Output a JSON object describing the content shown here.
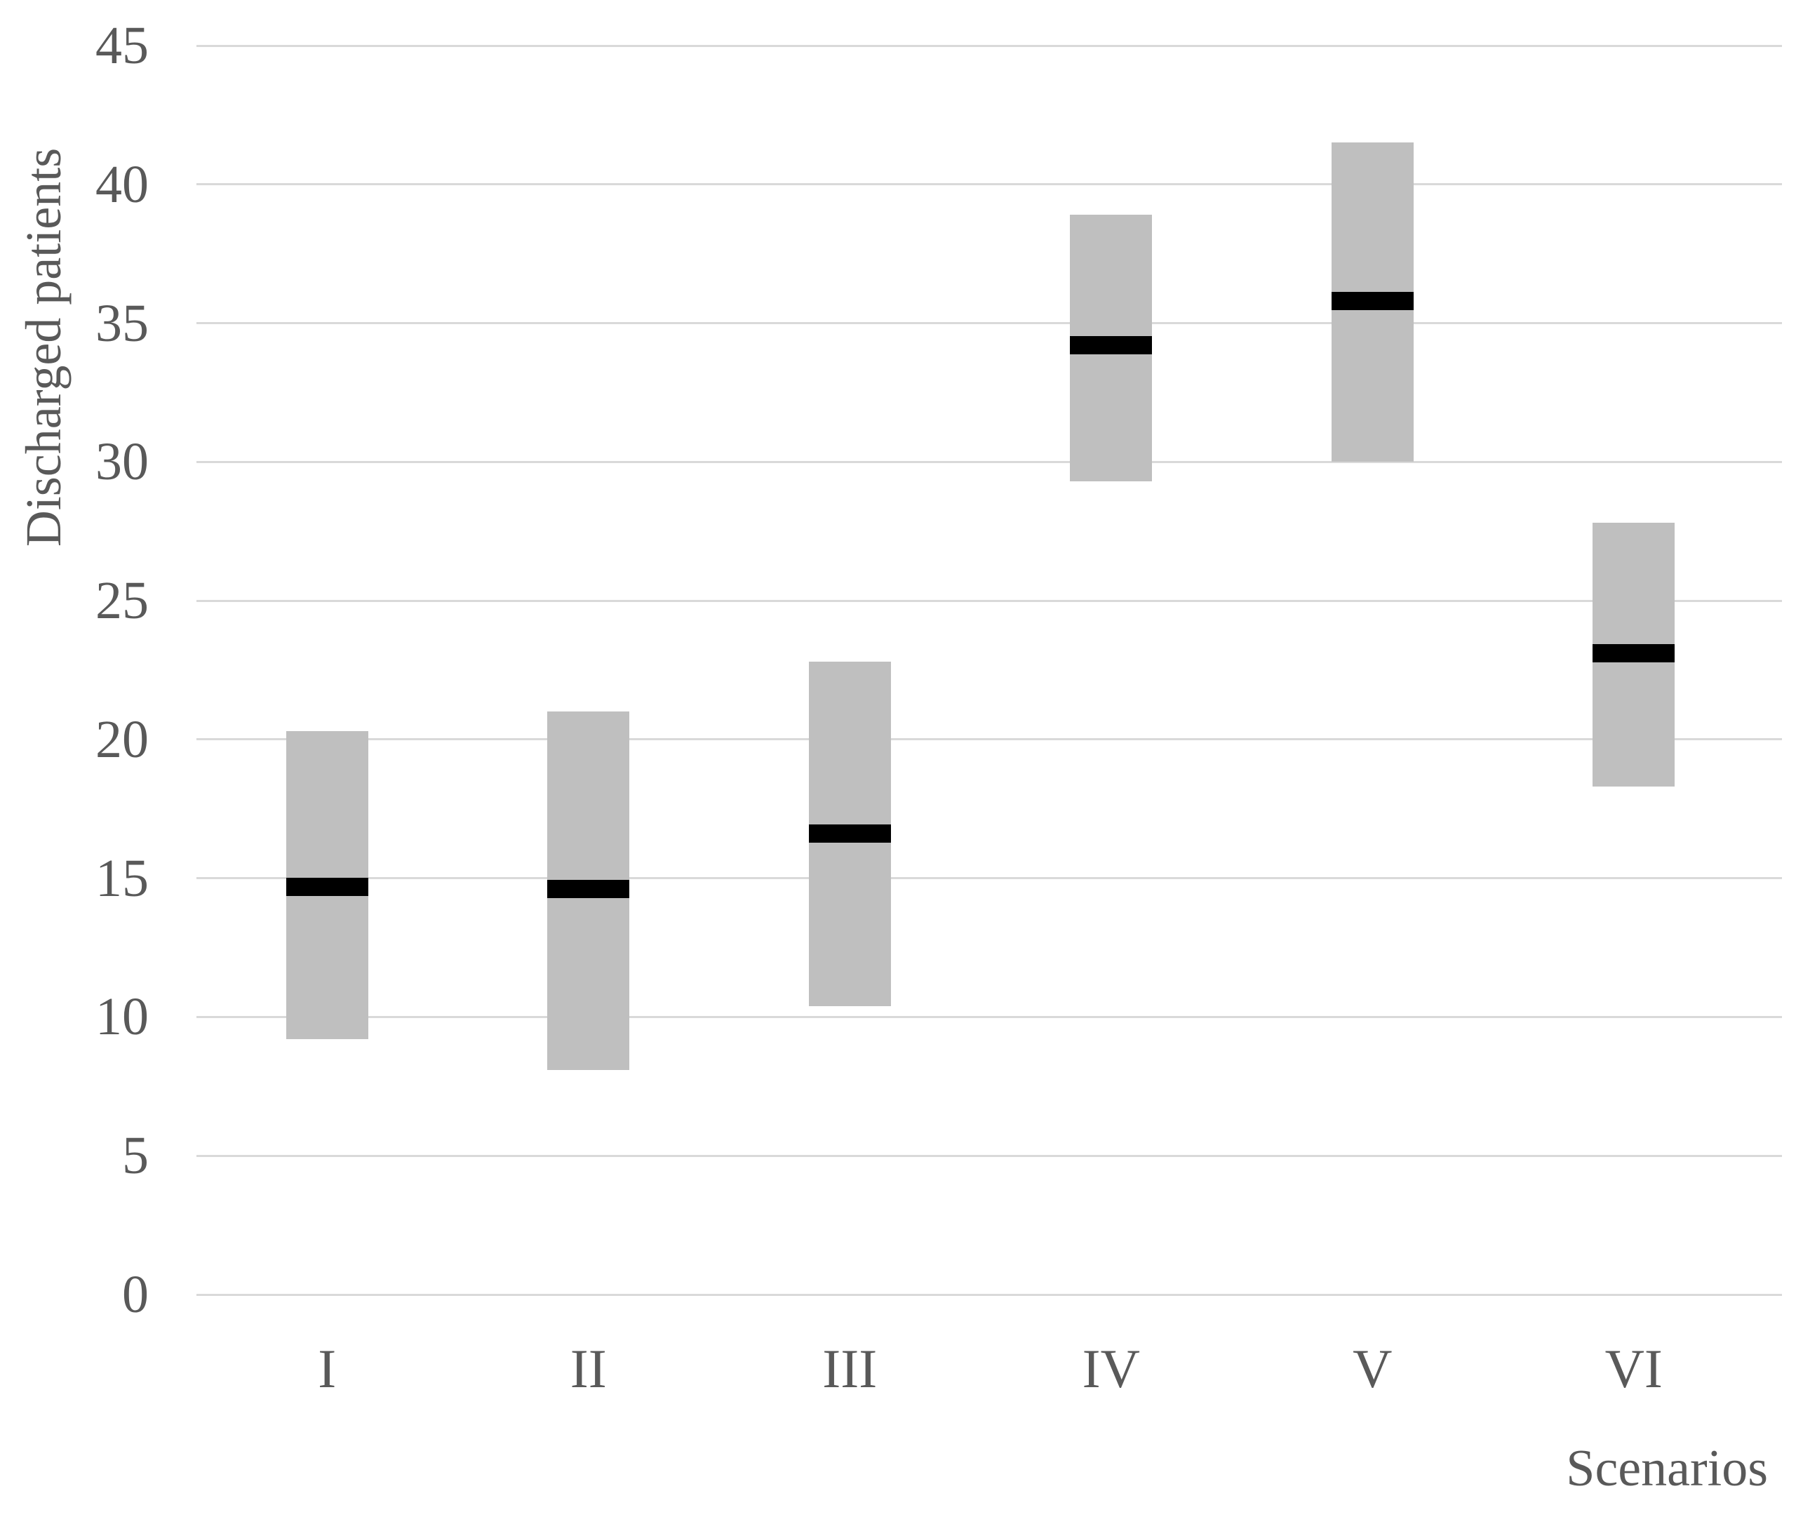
{
  "chart_data": {
    "type": "bar",
    "subtype": "floating-range-bars-with-median-marker",
    "title": "",
    "xlabel": "Scenarios",
    "ylabel": "Discharged patients",
    "categories": [
      "I",
      "II",
      "III",
      "IV",
      "V",
      "VI"
    ],
    "series": [
      {
        "name": "range_low",
        "values": [
          9.2,
          8.1,
          10.4,
          29.3,
          30.0,
          18.3
        ]
      },
      {
        "name": "median",
        "values": [
          14.7,
          14.6,
          16.6,
          34.2,
          35.8,
          23.1
        ]
      },
      {
        "name": "range_high",
        "values": [
          20.3,
          21.0,
          22.8,
          38.9,
          41.5,
          27.8
        ]
      }
    ],
    "ylim": [
      0,
      45
    ],
    "yticks": [
      0,
      5,
      10,
      15,
      20,
      25,
      30,
      35,
      40,
      45
    ],
    "grid": "horizontal",
    "legend_position": "none",
    "colors": {
      "bar_fill": "#BFBFBF",
      "median_line": "#000000",
      "gridline": "#D9D9D9",
      "axis_text": "#595959",
      "background": "#FFFFFF"
    }
  }
}
